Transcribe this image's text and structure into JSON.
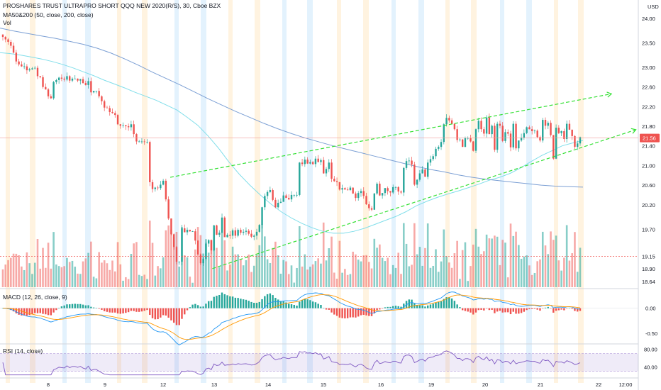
{
  "chart_data": {
    "type": "candlestick",
    "title": "PROSHARES TRUST ULTRAPRO SHORT QQQ NEW 2020(R/S), 30, Cboe BZX",
    "currency": "USD",
    "indicators": {
      "ma": "MA50&200 (50, close, 200, close)",
      "vol": "Vol",
      "macd": "MACD (12, 26, close, 9)",
      "rsi": "RSI (14, close)"
    },
    "x_ticks": [
      "8",
      "9",
      "12",
      "13",
      "14",
      "15",
      "16",
      "19",
      "20",
      "21",
      "22",
      "12:00"
    ],
    "price_ticks": [
      "24.00",
      "23.50",
      "23.00",
      "22.60",
      "22.20",
      "21.80",
      "21.40",
      "21.00",
      "20.60",
      "20.20",
      "19.70",
      "19.15",
      "18.90",
      "18.64"
    ],
    "macd_ticks": [
      "0.00",
      "-0.50"
    ],
    "rsi_ticks": [
      "80.00",
      "40.00"
    ],
    "last_price": "21.56",
    "last_price_value": 21.56,
    "dotted_level": 19.15,
    "price_range": [
      18.55,
      24.3
    ],
    "macd_range": [
      -0.7,
      0.35
    ],
    "rsi_range": [
      20,
      90
    ],
    "rsi_band": [
      30,
      70
    ],
    "closes": [
      23.62,
      23.57,
      23.52,
      23.44,
      23.3,
      23.12,
      23.06,
      23.02,
      23.02,
      22.94,
      22.96,
      22.98,
      22.99,
      22.82,
      22.8,
      22.6,
      22.55,
      22.41,
      22.37,
      22.7,
      22.74,
      22.79,
      22.77,
      22.75,
      22.82,
      22.73,
      22.77,
      22.77,
      22.73,
      22.76,
      22.68,
      22.64,
      22.72,
      22.49,
      22.52,
      22.52,
      22.41,
      22.31,
      22.18,
      22.17,
      22.09,
      22.07,
      22.03,
      21.84,
      21.81,
      21.82,
      21.8,
      21.78,
      21.84,
      21.64,
      21.49,
      21.49,
      21.49,
      21.48,
      21.48,
      20.66,
      20.52,
      20.55,
      20.54,
      20.61,
      20.69,
      20.31,
      19.92,
      19.6,
      19.34,
      19.04,
      19.04,
      19.72,
      19.64,
      19.69,
      19.66,
      19.66,
      19.47,
      19.19,
      19.01,
      19.1,
      19.41,
      19.48,
      19.27,
      19.78,
      19.59,
      19.63,
      19.94,
      19.54,
      19.59,
      19.57,
      19.68,
      19.57,
      19.69,
      19.63,
      19.65,
      19.67,
      19.61,
      19.55,
      19.57,
      19.65,
      19.79,
      20.15,
      20.38,
      20.46,
      20.5,
      20.3,
      20.15,
      20.24,
      20.26,
      20.39,
      20.34,
      20.31,
      20.4,
      20.4,
      20.4,
      21.06,
      21.03,
      21.12,
      21.04,
      21.07,
      21.03,
      21.14,
      21.07,
      21.11,
      20.84,
      20.93,
      21.06,
      20.73,
      20.68,
      20.66,
      20.51,
      20.54,
      20.51,
      20.5,
      20.55,
      20.43,
      20.34,
      20.44,
      20.48,
      20.38,
      20.21,
      20.13,
      20.1,
      20.43,
      20.63,
      20.39,
      20.44,
      20.54,
      20.48,
      20.45,
      20.56,
      20.56,
      20.47,
      20.45,
      20.95,
      21.09,
      21.1,
      21.02,
      20.61,
      20.71,
      20.84,
      20.92,
      20.77,
      21.06,
      21.13,
      21.19,
      21.34,
      21.38,
      21.48,
      21.84,
      21.97,
      21.92,
      21.85,
      21.74,
      21.52,
      21.53,
      21.38,
      21.56,
      21.56,
      21.49,
      21.3,
      21.74,
      21.91,
      21.74,
      21.65,
      21.98,
      21.64,
      21.81,
      21.32,
      21.85,
      21.81,
      21.5,
      21.68,
      21.65,
      21.37,
      21.85,
      21.35,
      21.51,
      21.57,
      21.66,
      21.78,
      21.74,
      21.7,
      21.71,
      21.58,
      21.51,
      21.93,
      21.81,
      21.87,
      21.62,
      21.14,
      21.77,
      21.66,
      21.7,
      21.54,
      21.85,
      21.73,
      21.6,
      21.38,
      21.45,
      21.58
    ],
    "ma50": [
      23.3,
      23.28,
      23.25,
      23.21,
      23.17,
      23.12,
      23.06,
      22.99,
      22.91,
      22.83,
      22.74,
      22.66,
      22.58,
      22.49,
      22.41,
      22.33,
      22.23,
      22.13,
      21.98,
      21.82,
      21.6,
      21.35,
      21.07,
      20.82,
      20.6,
      20.4,
      20.22,
      20.06,
      19.93,
      19.82,
      19.73,
      19.66,
      19.62,
      19.62,
      19.66,
      19.72,
      19.8,
      19.88,
      19.96,
      20.06,
      20.18,
      20.27,
      20.35,
      20.42,
      20.48,
      20.55,
      20.62,
      20.7,
      20.76,
      20.84,
      20.95,
      21.08,
      21.2,
      21.3,
      21.4,
      21.46,
      21.51
    ],
    "ma200": [
      23.8,
      23.74,
      23.69,
      23.64,
      23.59,
      23.53,
      23.47,
      23.39,
      23.29,
      23.17,
      23.04,
      22.9,
      22.77,
      22.64,
      22.5,
      22.36,
      22.23,
      22.1,
      21.98,
      21.86,
      21.75,
      21.65,
      21.56,
      21.48,
      21.4,
      21.33,
      21.26,
      21.19,
      21.12,
      21.05,
      20.98,
      20.92,
      20.87,
      20.81,
      20.76,
      20.72,
      20.69,
      20.66,
      20.63,
      20.6,
      20.58,
      20.57,
      20.56
    ],
    "trend_lines": [
      {
        "from": [
          0.2575,
          20.76
        ],
        "to": [
          0.925,
          22.46
        ]
      },
      {
        "from": [
          0.3213,
          18.9
        ],
        "to": [
          0.962,
          21.73
        ]
      }
    ]
  }
}
